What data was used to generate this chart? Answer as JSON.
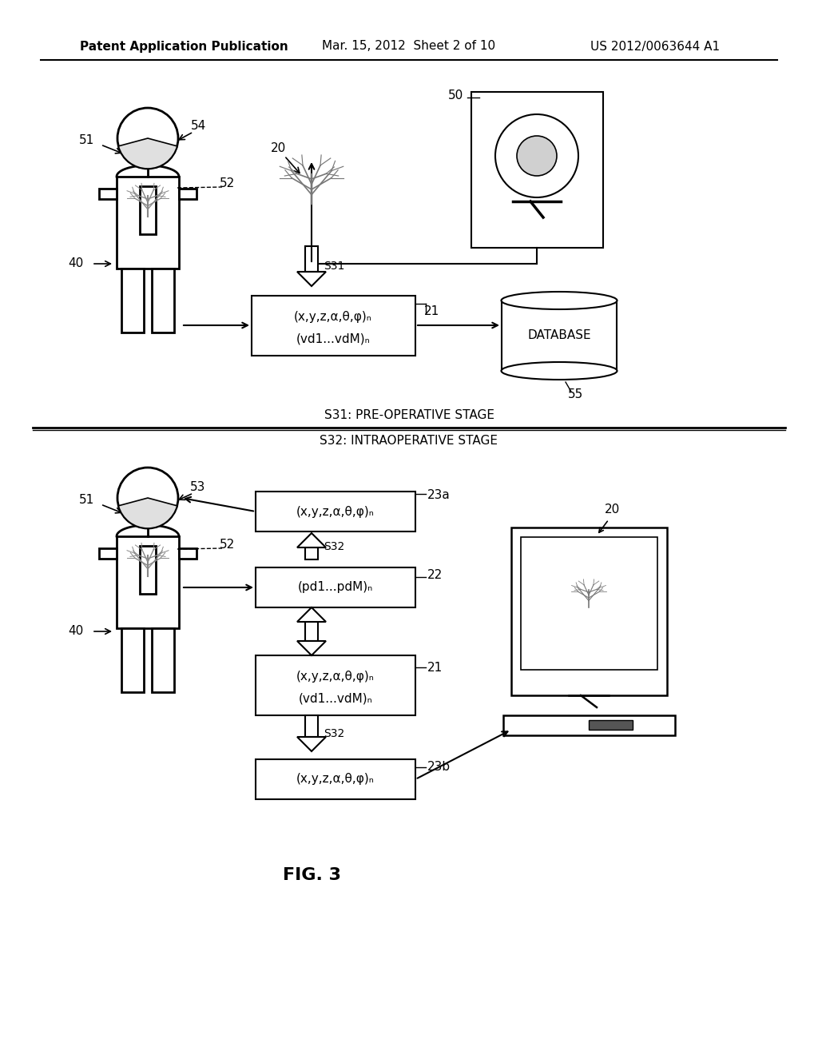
{
  "bg_color": "#ffffff",
  "header_text1": "Patent Application Publication",
  "header_text2": "Mar. 15, 2012  Sheet 2 of 10",
  "header_text3": "US 2012/0063644 A1",
  "fig_label": "FIG. 3",
  "stage1_label": "S31: PRE-OPERATIVE STAGE",
  "stage2_label": "S32: INTRAOPERATIVE STAGE",
  "database_text": "DATABASE"
}
